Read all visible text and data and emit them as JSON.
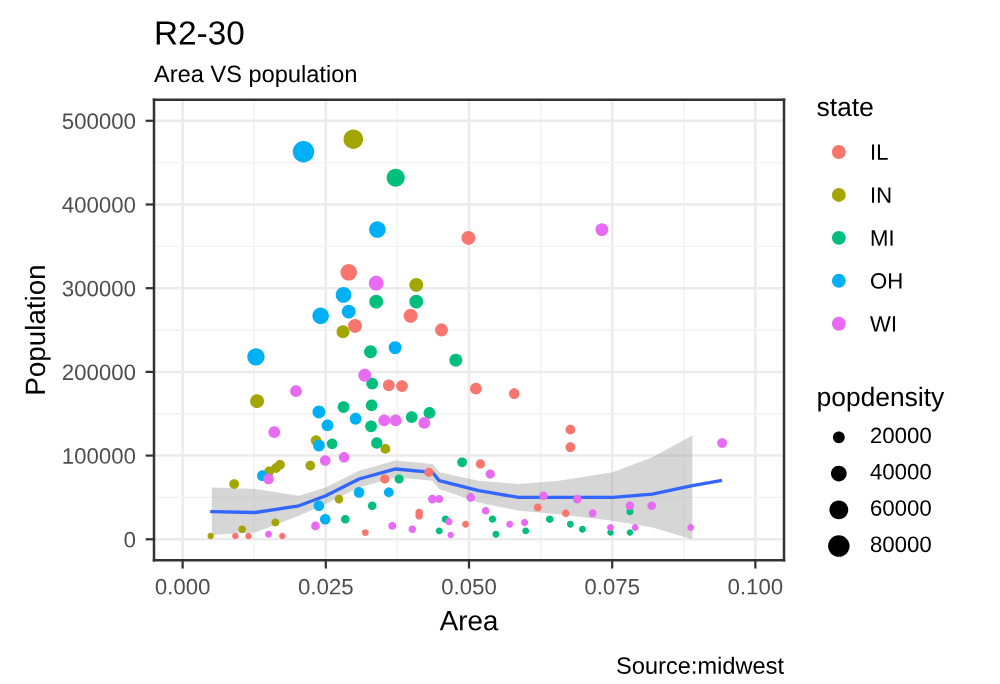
{
  "chart_data": {
    "type": "scatter",
    "title": "R2-30",
    "subtitle": "Area VS population",
    "xlabel": "Area",
    "ylabel": "Population",
    "legend_title": [
      "state",
      "popdensity"
    ],
    "annotations": [
      "Source:midwest"
    ],
    "xlim": [
      -0.005,
      0.105
    ],
    "xticks": [
      {
        "value": 0,
        "label": "0.000"
      },
      {
        "value": 0.025,
        "label": "0.025"
      },
      {
        "value": 0.05,
        "label": "0.050"
      },
      {
        "value": 0.075,
        "label": "0.075"
      },
      {
        "value": 0.1,
        "label": "0.100"
      }
    ],
    "ylim": [
      -25000,
      525000
    ],
    "yticks": [
      0,
      100000,
      200000,
      300000,
      400000,
      500000
    ],
    "grid": true,
    "legend": "right",
    "marker": "circle",
    "size_legend": [
      20000,
      40000,
      60000,
      80000
    ],
    "series": [
      {
        "name": "IL",
        "color": "#f8766d",
        "x": [
          0.029,
          0.0398,
          0.0301,
          0.0452,
          0.036,
          0.0383,
          0.0092,
          0.0115,
          0.0174,
          0.0319,
          0.0413,
          0.043,
          0.0353,
          0.0499,
          0.0512,
          0.0579,
          0.0677,
          0.0677,
          0.052,
          0.062,
          0.0669,
          0.0494,
          0.0413
        ],
        "values": [
          319000,
          267000,
          255000,
          250000,
          184000,
          183000,
          4000,
          4000,
          4000,
          8000,
          28000,
          80000,
          72000,
          360000,
          180000,
          174000,
          131000,
          110000,
          90000,
          38000,
          31000,
          18000,
          32000
        ],
        "sizes": [
          45000,
          30000,
          30000,
          25000,
          20000,
          20000,
          2000,
          2000,
          2000,
          3000,
          5000,
          10000,
          10000,
          30000,
          20000,
          15000,
          12000,
          12000,
          10000,
          6000,
          5000,
          3000,
          5000
        ]
      },
      {
        "name": "IN",
        "color": "#a3a500",
        "x": [
          0.0298,
          0.0408,
          0.028,
          0.013,
          0.0233,
          0.017,
          0.0163,
          0.0151,
          0.009,
          0.0223,
          0.0049,
          0.0104,
          0.0162,
          0.0273,
          0.0354
        ],
        "values": [
          478000,
          304000,
          248000,
          165000,
          118000,
          89000,
          85000,
          81000,
          66000,
          88000,
          4000,
          12000,
          20000,
          48000,
          108000
        ],
        "sizes": [
          65000,
          30000,
          25000,
          30000,
          15000,
          12000,
          12000,
          12000,
          12000,
          12000,
          2000,
          5000,
          6000,
          8000,
          12000
        ]
      },
      {
        "name": "MI",
        "color": "#00bf7d",
        "x": [
          0.0372,
          0.0338,
          0.0408,
          0.0328,
          0.0477,
          0.0331,
          0.0281,
          0.033,
          0.04,
          0.0431,
          0.0329,
          0.0339,
          0.0261,
          0.0284,
          0.0331,
          0.0378,
          0.0459,
          0.0488,
          0.0781,
          0.0641,
          0.0677,
          0.0698,
          0.0747,
          0.0781,
          0.0599,
          0.0547,
          0.0541,
          0.0448
        ],
        "values": [
          432000,
          284000,
          284000,
          224000,
          214000,
          186000,
          158000,
          160000,
          146000,
          151000,
          135000,
          115000,
          114000,
          24000,
          40000,
          72000,
          24000,
          92000,
          33000,
          24000,
          18000,
          12000,
          8000,
          8000,
          10000,
          6000,
          24000,
          10000
        ],
        "sizes": [
          55000,
          30000,
          30000,
          25000,
          25000,
          20000,
          20000,
          20000,
          20000,
          20000,
          20000,
          18000,
          15000,
          8000,
          8000,
          10000,
          5000,
          12000,
          4000,
          5000,
          3000,
          3000,
          2000,
          2000,
          3000,
          3000,
          4000,
          3000
        ]
      },
      {
        "name": "OH",
        "color": "#00b0f6",
        "x": [
          0.0211,
          0.034,
          0.0281,
          0.029,
          0.0241,
          0.0128,
          0.0371,
          0.0238,
          0.0302,
          0.0253,
          0.0238,
          0.0139,
          0.0249,
          0.0238,
          0.0308,
          0.036
        ],
        "values": [
          463000,
          370000,
          292000,
          272000,
          267000,
          218000,
          229000,
          152000,
          144000,
          136000,
          112000,
          76000,
          24000,
          40000,
          56000,
          56000
        ],
        "sizes": [
          80000,
          45000,
          40000,
          30000,
          45000,
          50000,
          25000,
          25000,
          20000,
          20000,
          20000,
          15000,
          15000,
          15000,
          15000,
          12000
        ]
      },
      {
        "name": "WI",
        "color": "#e76bf3",
        "x": [
          0.0338,
          0.0318,
          0.0198,
          0.0352,
          0.0372,
          0.0422,
          0.016,
          0.0249,
          0.0282,
          0.015,
          0.015,
          0.0232,
          0.0366,
          0.0436,
          0.0401,
          0.0732,
          0.0942,
          0.0537,
          0.0503,
          0.063,
          0.0689,
          0.0716,
          0.0781,
          0.0819,
          0.0747,
          0.0887,
          0.079,
          0.0597,
          0.0571,
          0.0529,
          0.0465,
          0.0468,
          0.0448
        ],
        "values": [
          306000,
          196000,
          177000,
          142000,
          142000,
          139000,
          128000,
          94000,
          98000,
          72000,
          6000,
          16000,
          16000,
          48000,
          12000,
          370000,
          115000,
          78000,
          50000,
          52000,
          48000,
          31000,
          40000,
          40000,
          14000,
          14000,
          14000,
          20000,
          18000,
          34000,
          21000,
          5000,
          48000
        ],
        "sizes": [
          35000,
          25000,
          20000,
          20000,
          20000,
          20000,
          20000,
          15000,
          15000,
          15000,
          3000,
          8000,
          6000,
          8000,
          5000,
          25000,
          12000,
          10000,
          8000,
          8000,
          8000,
          6000,
          8000,
          8000,
          3000,
          3000,
          3000,
          4000,
          3000,
          5000,
          4000,
          2000,
          6000
        ]
      },
      {
        "type": "line",
        "marker": "none",
        "color": "#3366ff",
        "x": [
          0.0051,
          0.0127,
          0.0203,
          0.025,
          0.0308,
          0.0372,
          0.0436,
          0.0448,
          0.0517,
          0.0587,
          0.0657,
          0.0751,
          0.082,
          0.089,
          0.0939
        ],
        "values": [
          33000,
          32000,
          40000,
          52000,
          72000,
          84000,
          80000,
          70000,
          58000,
          50000,
          50000,
          50000,
          54000,
          64000,
          70000
        ],
        "lower": [
          5000,
          8000,
          28000,
          42000,
          62000,
          74000,
          70000,
          60000,
          44000,
          34000,
          30000,
          22000,
          14000,
          0,
          null
        ],
        "upper": [
          62000,
          60000,
          52000,
          62000,
          82000,
          94000,
          90000,
          80000,
          70000,
          66000,
          70000,
          80000,
          98000,
          124000,
          null
        ]
      }
    ]
  }
}
